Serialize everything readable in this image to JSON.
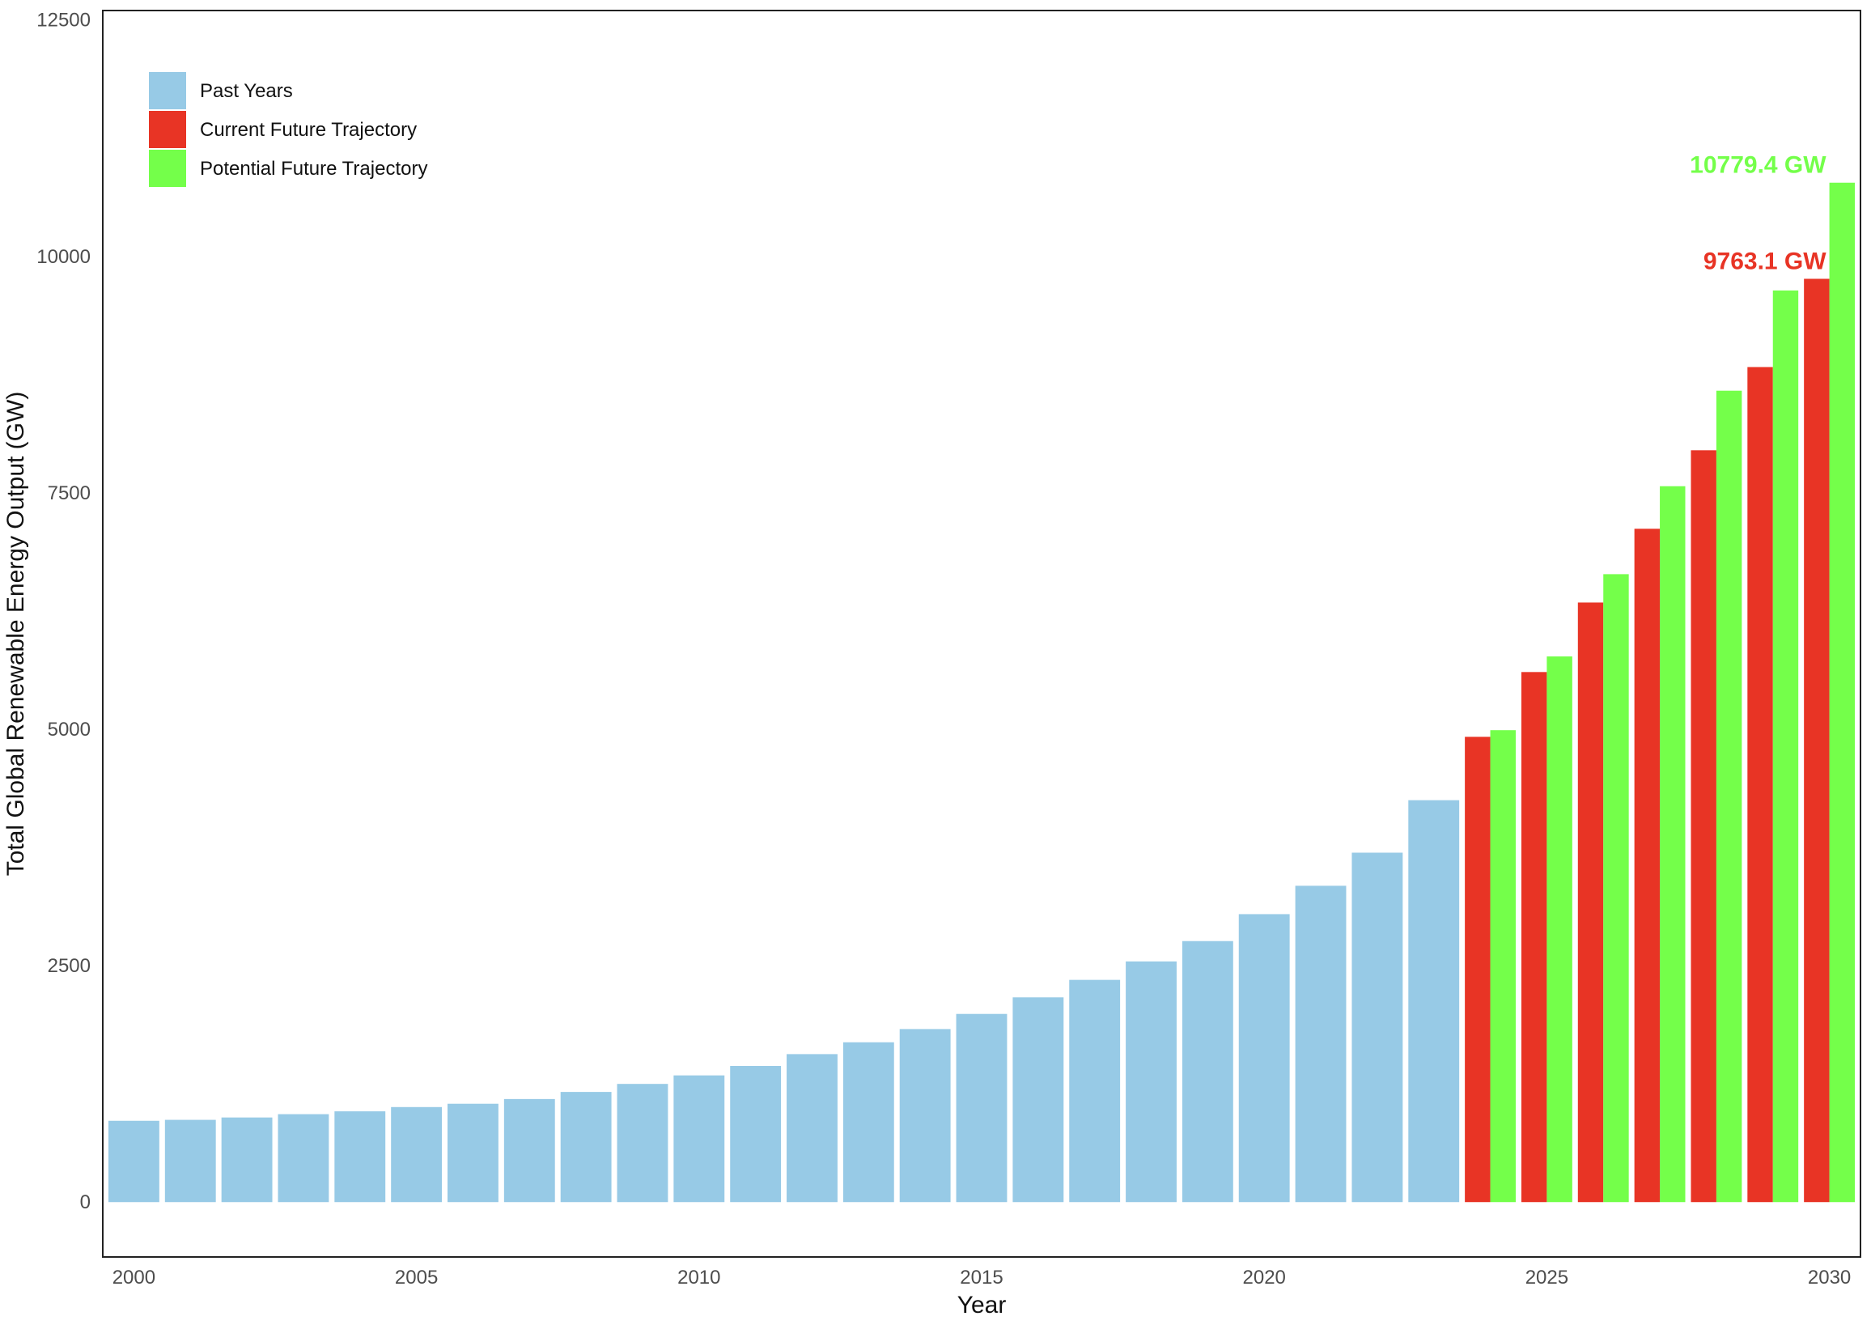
{
  "chart_data": {
    "type": "bar",
    "xlabel": "Year",
    "ylabel": "Total Global Renewable Energy Output (GW)",
    "xlim": [
      1999.45,
      2030.55
    ],
    "ylim": [
      -580,
      12600
    ],
    "x_ticks": [
      2000,
      2005,
      2010,
      2015,
      2020,
      2025,
      2030
    ],
    "y_ticks": [
      0,
      2500,
      5000,
      7500,
      10000,
      12500
    ],
    "grid": false,
    "legend_position": "top-left",
    "series": [
      {
        "name": "Past Years",
        "color": "#97CAE6",
        "points": [
          {
            "x": 2000,
            "y": 860
          },
          {
            "x": 2001,
            "y": 870
          },
          {
            "x": 2002,
            "y": 895
          },
          {
            "x": 2003,
            "y": 930
          },
          {
            "x": 2004,
            "y": 960
          },
          {
            "x": 2005,
            "y": 1005
          },
          {
            "x": 2006,
            "y": 1040
          },
          {
            "x": 2007,
            "y": 1090
          },
          {
            "x": 2008,
            "y": 1165
          },
          {
            "x": 2009,
            "y": 1250
          },
          {
            "x": 2010,
            "y": 1340
          },
          {
            "x": 2011,
            "y": 1440
          },
          {
            "x": 2012,
            "y": 1565
          },
          {
            "x": 2013,
            "y": 1690
          },
          {
            "x": 2014,
            "y": 1830
          },
          {
            "x": 2015,
            "y": 1990
          },
          {
            "x": 2016,
            "y": 2165
          },
          {
            "x": 2017,
            "y": 2350
          },
          {
            "x": 2018,
            "y": 2545
          },
          {
            "x": 2019,
            "y": 2760
          },
          {
            "x": 2020,
            "y": 3045
          },
          {
            "x": 2021,
            "y": 3345
          },
          {
            "x": 2022,
            "y": 3695
          },
          {
            "x": 2023,
            "y": 4250
          }
        ]
      },
      {
        "name": "Current Future Trajectory",
        "color": "#E83425",
        "points": [
          {
            "x": 2024,
            "y": 4920
          },
          {
            "x": 2025,
            "y": 5605
          },
          {
            "x": 2026,
            "y": 6340
          },
          {
            "x": 2027,
            "y": 7120
          },
          {
            "x": 2028,
            "y": 7950
          },
          {
            "x": 2029,
            "y": 8830
          },
          {
            "x": 2030,
            "y": 9763.1
          }
        ]
      },
      {
        "name": "Potential Future Trajectory",
        "color": "#74FF4A",
        "points": [
          {
            "x": 2024,
            "y": 4990
          },
          {
            "x": 2025,
            "y": 5770
          },
          {
            "x": 2026,
            "y": 6640
          },
          {
            "x": 2027,
            "y": 7570
          },
          {
            "x": 2028,
            "y": 8580
          },
          {
            "x": 2029,
            "y": 9640
          },
          {
            "x": 2030,
            "y": 10779.4
          }
        ]
      }
    ],
    "annotations": [
      {
        "text": "10779.4 GW",
        "series": "Potential Future Trajectory",
        "x": 2030,
        "y": 10779.4,
        "color": "#74FF4A"
      },
      {
        "text": "9763.1 GW",
        "series": "Current Future Trajectory",
        "x": 2030,
        "y": 9763.1,
        "color": "#E83425"
      }
    ]
  }
}
